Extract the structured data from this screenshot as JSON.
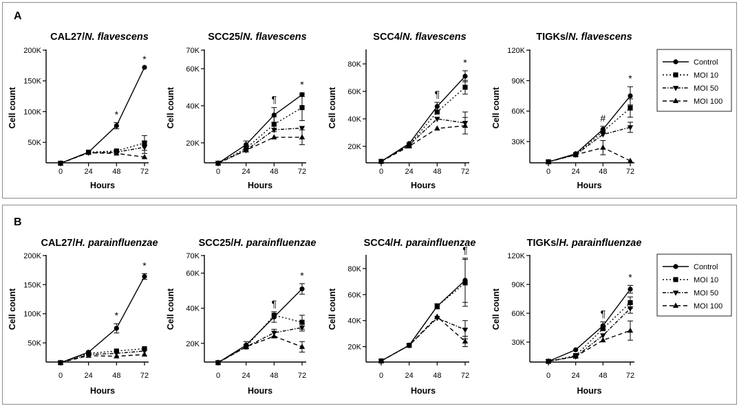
{
  "panels": [
    {
      "label": "A",
      "legend": [
        "Control",
        "MOI 10",
        "MOI 50",
        "MOI 100"
      ]
    },
    {
      "label": "B",
      "legend": [
        "Control",
        "MOI 10",
        "MOI 50",
        "MOI 100"
      ]
    }
  ],
  "chart_data": [
    {
      "panel": "A",
      "type": "line",
      "title_cell": "CAL27/",
      "title_species": "N. flavescens",
      "xlabel": "Hours",
      "ylabel": "Cell count",
      "x": [
        0,
        24,
        48,
        72
      ],
      "ylim": [
        10000,
        200000
      ],
      "yticks": [
        50000,
        100000,
        150000,
        200000
      ],
      "ytick_labels": [
        "50K",
        "100K",
        "150K",
        "200K"
      ],
      "series": [
        {
          "name": "Control",
          "values": [
            16000,
            34000,
            77000,
            172000
          ],
          "err": [
            0,
            0,
            5000,
            0
          ]
        },
        {
          "name": "MOI 10",
          "values": [
            16000,
            34000,
            36000,
            49000
          ],
          "err": [
            0,
            0,
            0,
            12000
          ]
        },
        {
          "name": "MOI 50",
          "values": [
            16000,
            33000,
            34000,
            42000
          ],
          "err": [
            0,
            0,
            0,
            10000
          ]
        },
        {
          "name": "MOI 100",
          "values": [
            16000,
            33000,
            32000,
            26000
          ],
          "err": [
            0,
            0,
            0,
            0
          ]
        }
      ],
      "annotations": [
        {
          "x": 48,
          "text": "*"
        },
        {
          "x": 72,
          "text": "*"
        }
      ]
    },
    {
      "panel": "A",
      "type": "line",
      "title_cell": "SCC25/",
      "title_species": "N. flavescens",
      "xlabel": "Hours",
      "ylabel": "Cell count",
      "x": [
        0,
        24,
        48,
        72
      ],
      "ylim": [
        7000,
        70000
      ],
      "yticks": [
        20000,
        40000,
        60000,
        70000
      ],
      "ytick_labels": [
        "20K",
        "40K",
        "60K",
        "70K"
      ],
      "series": [
        {
          "name": "Control",
          "values": [
            9000,
            19000,
            35000,
            46000
          ],
          "err": [
            0,
            2000,
            4000,
            1000
          ]
        },
        {
          "name": "MOI 10",
          "values": [
            9000,
            17000,
            30000,
            39000
          ],
          "err": [
            0,
            0,
            4000,
            7000
          ]
        },
        {
          "name": "MOI 50",
          "values": [
            9000,
            16000,
            27000,
            28000
          ],
          "err": [
            0,
            0,
            0,
            0
          ]
        },
        {
          "name": "MOI 100",
          "values": [
            9000,
            16000,
            23000,
            23000
          ],
          "err": [
            0,
            0,
            0,
            4000
          ]
        }
      ],
      "annotations": [
        {
          "x": 48,
          "text": "¶"
        },
        {
          "x": 72,
          "text": "*"
        }
      ]
    },
    {
      "panel": "A",
      "type": "line",
      "title_cell": "SCC4/",
      "title_species": "N. flavescens",
      "xlabel": "Hours",
      "ylabel": "Cell count",
      "x": [
        0,
        24,
        48,
        72
      ],
      "ylim": [
        5000,
        90000
      ],
      "yticks": [
        20000,
        40000,
        60000,
        80000
      ],
      "ytick_labels": [
        "20K",
        "40K",
        "60K",
        "80K"
      ],
      "series": [
        {
          "name": "Control",
          "values": [
            9000,
            22000,
            49000,
            71000
          ],
          "err": [
            0,
            0,
            3000,
            4000
          ]
        },
        {
          "name": "MOI 10",
          "values": [
            9000,
            21000,
            45000,
            63000
          ],
          "err": [
            0,
            0,
            0,
            5000
          ]
        },
        {
          "name": "MOI 50",
          "values": [
            9000,
            21000,
            40000,
            37000
          ],
          "err": [
            0,
            0,
            0,
            8000
          ]
        },
        {
          "name": "MOI 100",
          "values": [
            9000,
            20000,
            33000,
            35000
          ],
          "err": [
            0,
            0,
            0,
            6000
          ]
        }
      ],
      "annotations": [
        {
          "x": 48,
          "text": "¶"
        },
        {
          "x": 72,
          "text": "*"
        }
      ]
    },
    {
      "panel": "A",
      "type": "line",
      "title_cell": "TIGKs/",
      "title_species": "N. flavescens",
      "xlabel": "Hours",
      "ylabel": "Cell count",
      "x": [
        0,
        24,
        48,
        72
      ],
      "ylim": [
        5000,
        120000
      ],
      "yticks": [
        30000,
        60000,
        90000,
        120000
      ],
      "ytick_labels": [
        "30K",
        "60K",
        "90K",
        "120K"
      ],
      "series": [
        {
          "name": "Control",
          "values": [
            10000,
            18000,
            42000,
            75000
          ],
          "err": [
            0,
            0,
            3000,
            9000
          ]
        },
        {
          "name": "MOI 10",
          "values": [
            10000,
            17000,
            40000,
            63000
          ],
          "err": [
            0,
            0,
            0,
            9000
          ]
        },
        {
          "name": "MOI 50",
          "values": [
            10000,
            17000,
            37000,
            44000
          ],
          "err": [
            0,
            0,
            0,
            5000
          ]
        },
        {
          "name": "MOI 100",
          "values": [
            10000,
            17000,
            24000,
            11000
          ],
          "err": [
            0,
            0,
            7000,
            0
          ]
        }
      ],
      "annotations": [
        {
          "x": 48,
          "text": "#"
        },
        {
          "x": 72,
          "text": "*"
        }
      ]
    },
    {
      "panel": "B",
      "type": "line",
      "title_cell": "CAL27/",
      "title_species": "H. parainfluenzae",
      "xlabel": "Hours",
      "ylabel": "Cell count",
      "x": [
        0,
        24,
        48,
        72
      ],
      "ylim": [
        10000,
        200000
      ],
      "yticks": [
        50000,
        100000,
        150000,
        200000
      ],
      "ytick_labels": [
        "50K",
        "100K",
        "150K",
        "200K"
      ],
      "series": [
        {
          "name": "Control",
          "values": [
            16000,
            34000,
            75000,
            164000
          ],
          "err": [
            0,
            0,
            8000,
            5000
          ]
        },
        {
          "name": "MOI 10",
          "values": [
            16000,
            32000,
            36000,
            40000
          ],
          "err": [
            0,
            0,
            0,
            0
          ]
        },
        {
          "name": "MOI 50",
          "values": [
            16000,
            30000,
            32000,
            36000
          ],
          "err": [
            0,
            0,
            0,
            0
          ]
        },
        {
          "name": "MOI 100",
          "values": [
            16000,
            28000,
            27000,
            30000
          ],
          "err": [
            0,
            0,
            0,
            0
          ]
        }
      ],
      "annotations": [
        {
          "x": 48,
          "text": "*"
        },
        {
          "x": 72,
          "text": "*"
        }
      ]
    },
    {
      "panel": "B",
      "type": "line",
      "title_cell": "SCC25/",
      "title_species": "H. parainfluenzae",
      "xlabel": "Hours",
      "ylabel": "Cell count",
      "x": [
        0,
        24,
        48,
        72
      ],
      "ylim": [
        7000,
        70000
      ],
      "yticks": [
        20000,
        40000,
        60000,
        70000
      ],
      "ytick_labels": [
        "20K",
        "40K",
        "60K",
        "70K"
      ],
      "series": [
        {
          "name": "Control",
          "values": [
            9000,
            19000,
            35000,
            51000
          ],
          "err": [
            0,
            2000,
            3000,
            3000
          ]
        },
        {
          "name": "MOI 10",
          "values": [
            9000,
            18000,
            36000,
            32000
          ],
          "err": [
            0,
            0,
            0,
            4000
          ]
        },
        {
          "name": "MOI 50",
          "values": [
            9000,
            18000,
            26000,
            29000
          ],
          "err": [
            0,
            0,
            2000,
            2000
          ]
        },
        {
          "name": "MOI 100",
          "values": [
            9000,
            18000,
            24000,
            18000
          ],
          "err": [
            0,
            0,
            0,
            3000
          ]
        }
      ],
      "annotations": [
        {
          "x": 48,
          "text": "¶"
        },
        {
          "x": 72,
          "text": "*"
        }
      ]
    },
    {
      "panel": "B",
      "type": "line",
      "title_cell": "SCC4/",
      "title_species": "H. parainfluenzae",
      "xlabel": "Hours",
      "ylabel": "Cell count",
      "x": [
        0,
        24,
        48,
        72
      ],
      "ylim": [
        5000,
        90000
      ],
      "yticks": [
        20000,
        40000,
        60000,
        80000
      ],
      "ytick_labels": [
        "20K",
        "40K",
        "60K",
        "80K"
      ],
      "series": [
        {
          "name": "Control",
          "values": [
            9000,
            21000,
            51000,
            71000
          ],
          "err": [
            0,
            0,
            2000,
            17000
          ]
        },
        {
          "name": "MOI 10",
          "values": [
            9000,
            21000,
            51000,
            69000
          ],
          "err": [
            0,
            0,
            0,
            18000
          ]
        },
        {
          "name": "MOI 50",
          "values": [
            9000,
            21000,
            42000,
            33000
          ],
          "err": [
            0,
            0,
            0,
            7000
          ]
        },
        {
          "name": "MOI 100",
          "values": [
            9000,
            21000,
            43000,
            24000
          ],
          "err": [
            0,
            0,
            0,
            4000
          ]
        }
      ],
      "annotations": [
        {
          "x": 72,
          "text": "¶"
        }
      ]
    },
    {
      "panel": "B",
      "type": "line",
      "title_cell": "TIGKs/",
      "title_species": "H. parainfluenzae",
      "xlabel": "Hours",
      "ylabel": "Cell count",
      "x": [
        0,
        24,
        48,
        72
      ],
      "ylim": [
        5000,
        120000
      ],
      "yticks": [
        30000,
        60000,
        90000,
        120000
      ],
      "ytick_labels": [
        "30K",
        "60K",
        "90K",
        "120K"
      ],
      "series": [
        {
          "name": "Control",
          "values": [
            10000,
            22000,
            47000,
            85000
          ],
          "err": [
            0,
            0,
            4000,
            4000
          ]
        },
        {
          "name": "MOI 10",
          "values": [
            10000,
            16000,
            44000,
            71000
          ],
          "err": [
            0,
            0,
            0,
            6000
          ]
        },
        {
          "name": "MOI 50",
          "values": [
            10000,
            15000,
            37000,
            65000
          ],
          "err": [
            0,
            0,
            0,
            5000
          ]
        },
        {
          "name": "MOI 100",
          "values": [
            10000,
            15000,
            32000,
            42000
          ],
          "err": [
            0,
            0,
            0,
            10000
          ]
        }
      ],
      "annotations": [
        {
          "x": 48,
          "text": "¶"
        },
        {
          "x": 72,
          "text": "*"
        }
      ]
    }
  ]
}
